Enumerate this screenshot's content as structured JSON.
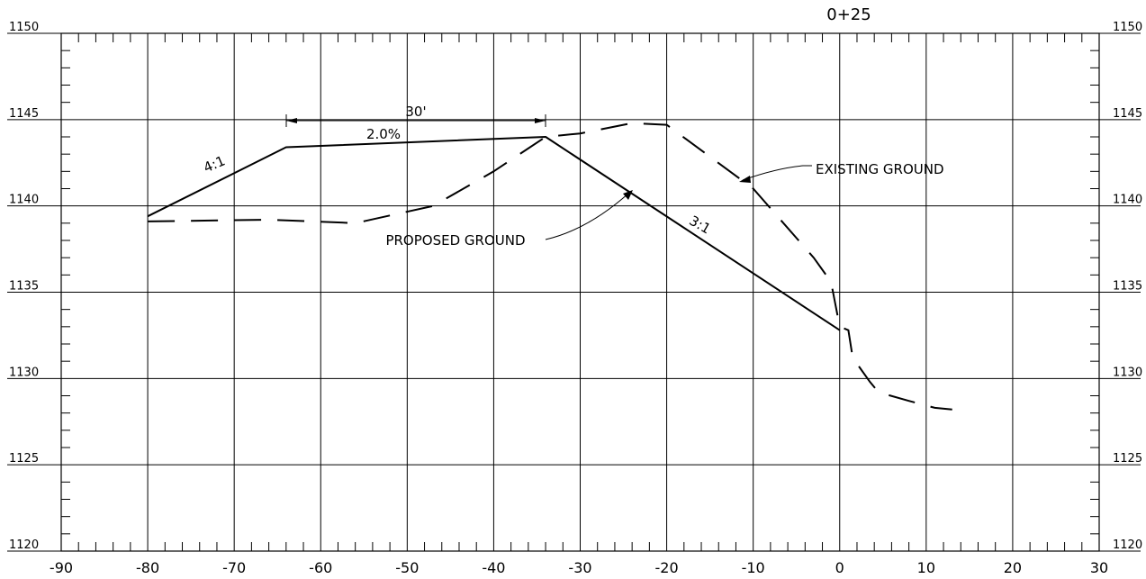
{
  "chart_data": {
    "type": "line",
    "title": "0+25",
    "x": [
      -90,
      -80,
      -70,
      -60,
      -50,
      -40,
      -30,
      -20,
      -10,
      0,
      10,
      20,
      30
    ],
    "xlim": [
      -90,
      30
    ],
    "ylim": [
      1120,
      1150
    ],
    "y_ticks": [
      1120,
      1125,
      1130,
      1135,
      1140,
      1145,
      1150
    ],
    "y_tick_labels": [
      "1120",
      "1125",
      "1130",
      "1135",
      "1140",
      "1145",
      "1150"
    ],
    "x_tick_labels": [
      "-90",
      "-80",
      "-70",
      "-60",
      "-50",
      "-40",
      "-30",
      "-20",
      "-10",
      "0",
      "10",
      "20",
      "30"
    ],
    "grid": true,
    "series": [
      {
        "name": "PROPOSED GROUND",
        "style": "solid",
        "points": [
          [
            -80,
            1139.4
          ],
          [
            -64,
            1143.4
          ],
          [
            -34,
            1144
          ],
          [
            0,
            1132.8
          ]
        ]
      },
      {
        "name": "EXISTING GROUND",
        "style": "dashed",
        "points": [
          [
            -80,
            1139.1
          ],
          [
            -66,
            1139.2
          ],
          [
            -56,
            1139
          ],
          [
            -47,
            1140
          ],
          [
            -40,
            1142
          ],
          [
            -34,
            1144
          ],
          [
            -30,
            1144.2
          ],
          [
            -24,
            1144.8
          ],
          [
            -20,
            1144.7
          ],
          [
            -10,
            1141
          ],
          [
            -3,
            1137
          ],
          [
            -1,
            1135.6
          ],
          [
            0,
            1133
          ],
          [
            1,
            1132.8
          ],
          [
            1.5,
            1131.2
          ],
          [
            3.5,
            1129.8
          ],
          [
            4.5,
            1129.2
          ],
          [
            8,
            1128.7
          ],
          [
            11,
            1128.3
          ],
          [
            13,
            1128.2
          ]
        ]
      }
    ],
    "annotations": {
      "width_dim": "30'",
      "grade": "2.0%",
      "left_slope": "4:1",
      "right_slope": "3:1",
      "proposed_label": "PROPOSED GROUND",
      "existing_label": "EXISTING GROUND"
    }
  }
}
